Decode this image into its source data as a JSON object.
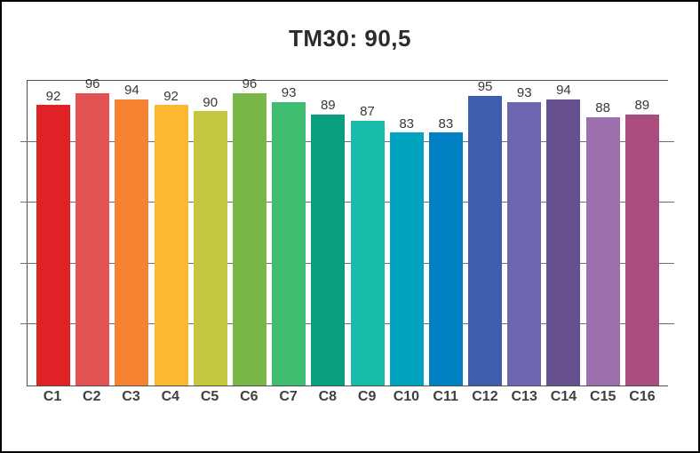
{
  "chart_data": {
    "type": "bar",
    "title": "TM30: 90,5",
    "categories": [
      "C1",
      "C2",
      "C3",
      "C4",
      "C5",
      "C6",
      "C7",
      "C8",
      "C9",
      "C10",
      "C11",
      "C12",
      "C13",
      "C14",
      "C15",
      "C16"
    ],
    "values": [
      92,
      96,
      94,
      92,
      90,
      96,
      93,
      89,
      87,
      83,
      83,
      95,
      93,
      94,
      88,
      89
    ],
    "bar_colors": [
      "#e02227",
      "#e35252",
      "#f58231",
      "#fbb830",
      "#c4c83f",
      "#79b749",
      "#3fbd70",
      "#0b9e7e",
      "#19bcab",
      "#00a4be",
      "#0081c3",
      "#3f5dad",
      "#6d67b0",
      "#67508e",
      "#9b70ac",
      "#a94d7f"
    ],
    "xlabel": "",
    "ylabel": "",
    "ylim": [
      0,
      100
    ],
    "gridline_values": [
      20,
      40,
      60,
      80
    ],
    "grid": true,
    "legend": false,
    "value_labels": true
  },
  "colors": {
    "background": "#ffffff",
    "outer_border": "#000000",
    "plot_border": "#4d4d4d",
    "gridline": "#6f6f6f",
    "title_text": "#2b2b2b",
    "value_label_text": "#383838",
    "category_label_text": "#3f3f3f"
  }
}
